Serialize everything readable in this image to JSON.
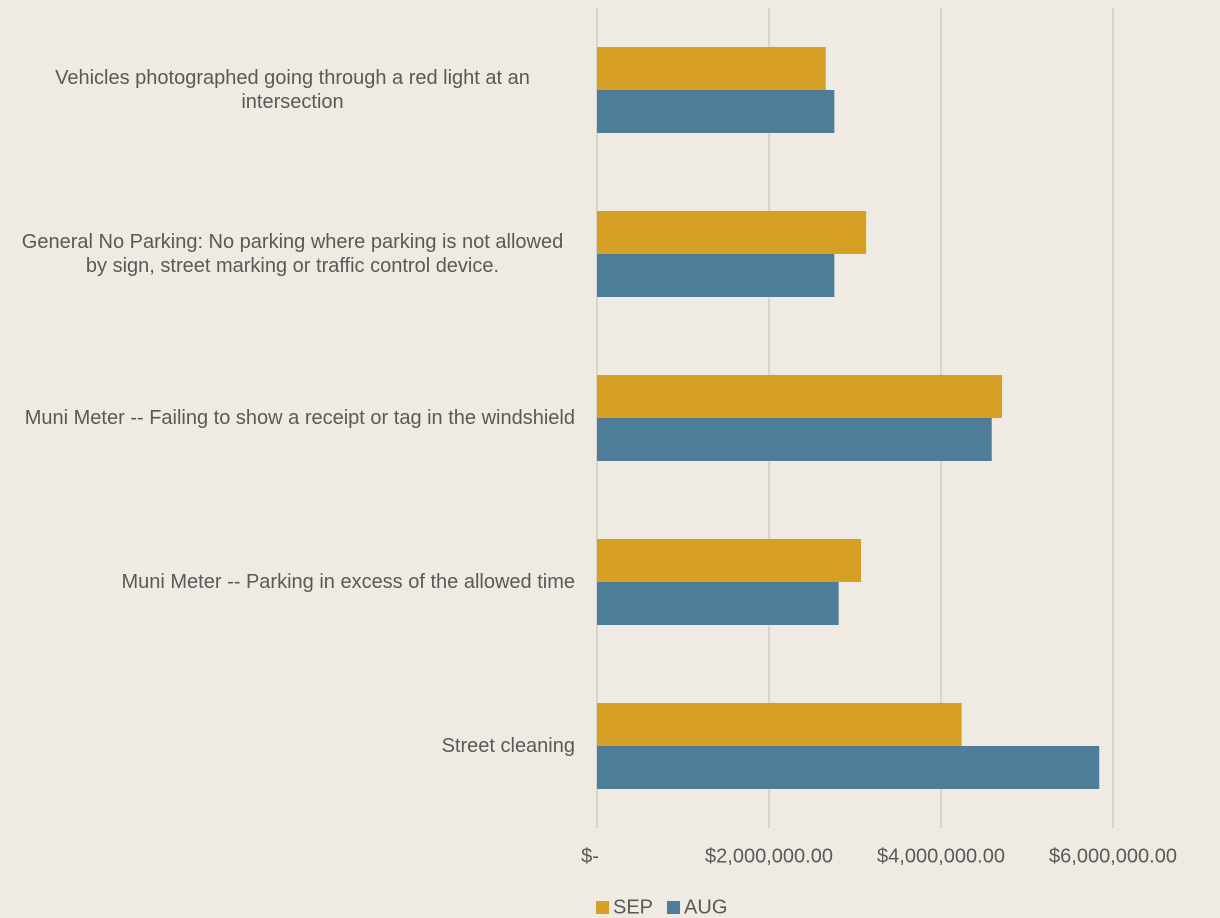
{
  "chart_data": {
    "type": "barh",
    "categories": [
      "Vehicles photographed going through a red light at an intersection",
      "General No Parking: No parking where parking is not allowed by sign, street marking or traffic control device.",
      "Muni Meter -- Failing to show a receipt or tag in the windshield",
      "Muni Meter -- Parking in excess of the allowed time",
      "Street cleaning"
    ],
    "series": [
      {
        "name": "SEP",
        "color": "#d5a024",
        "values": [
          2660000,
          3130000,
          4710000,
          3070000,
          4240000
        ]
      },
      {
        "name": "AUG",
        "color": "#4e7d99",
        "values": [
          2760000,
          2760000,
          4590000,
          2810000,
          5840000
        ]
      }
    ],
    "xlim": [
      0,
      6000000
    ],
    "xticks": [
      {
        "value": 0,
        "label": "$-"
      },
      {
        "value": 2000000,
        "label": "$2,000,000.00"
      },
      {
        "value": 4000000,
        "label": "$4,000,000.00"
      },
      {
        "value": 6000000,
        "label": "$6,000,000.00"
      }
    ],
    "grid": true,
    "legend": "bottom"
  }
}
